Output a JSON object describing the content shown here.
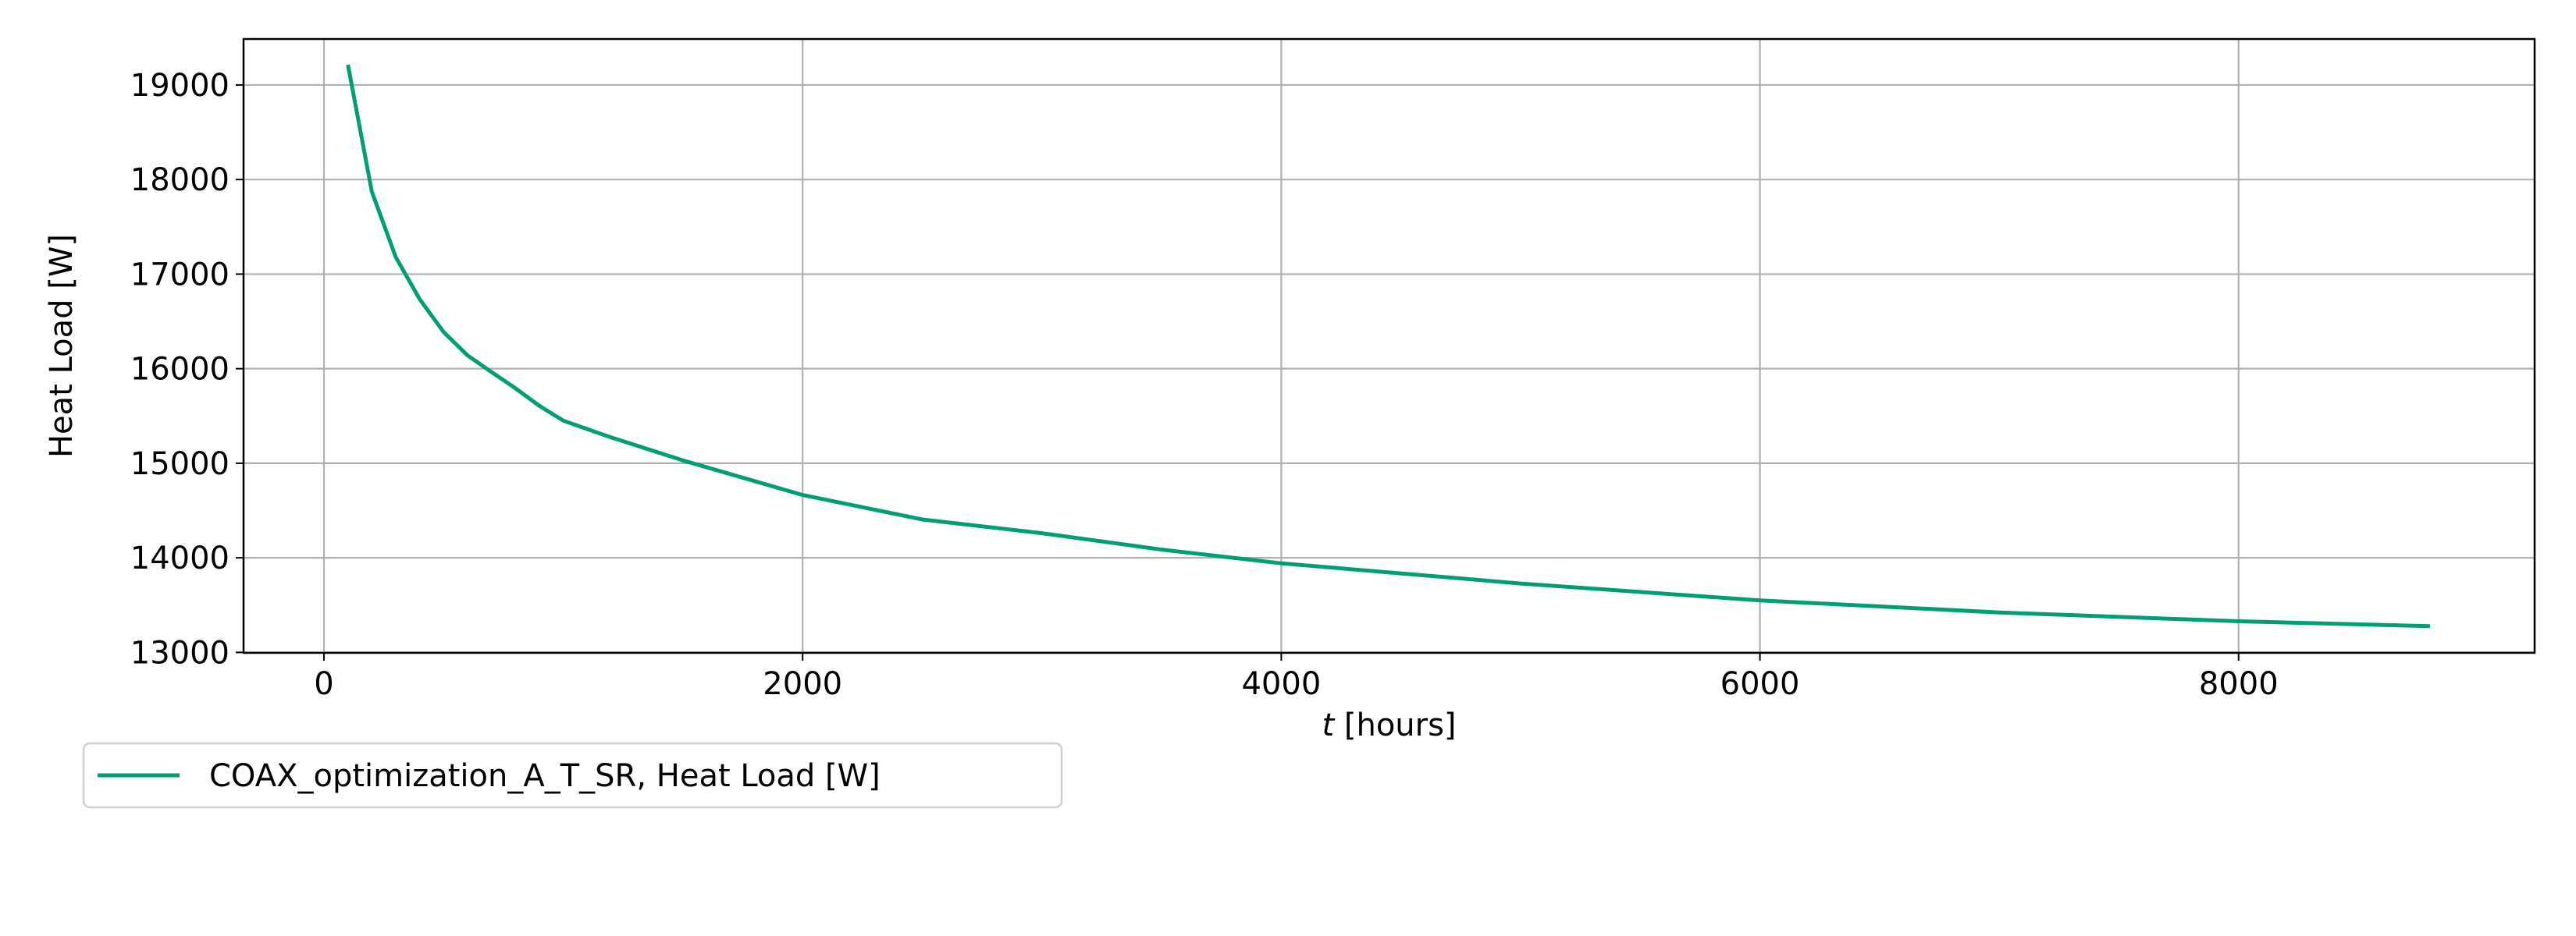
{
  "chart_data": {
    "type": "line",
    "title": "",
    "xlabel_italic": "t",
    "xlabel_rest": " [hours]",
    "ylabel": "Heat Load [W]",
    "xlim": [
      -336,
      9237
    ],
    "ylim": [
      12995,
      19486
    ],
    "xticks": [
      0,
      2000,
      4000,
      6000,
      8000
    ],
    "yticks": [
      13000,
      14000,
      15000,
      16000,
      17000,
      18000,
      19000
    ],
    "grid": true,
    "legend_placement": "below-left",
    "series": [
      {
        "name": "COAX_optimization_A_T_SR, Heat Load [W]",
        "color": "#009e73",
        "x": [
          100,
          200,
          300,
          400,
          500,
          600,
          700,
          800,
          900,
          1000,
          1200,
          1500,
          2000,
          2500,
          3000,
          3500,
          4000,
          5000,
          6000,
          7000,
          8000,
          8800
        ],
        "y": [
          19214,
          17873,
          17179,
          16734,
          16387,
          16140,
          15965,
          15793,
          15607,
          15450,
          15273,
          15030,
          14664,
          14405,
          14260,
          14087,
          13942,
          13728,
          13549,
          13422,
          13329,
          13277
        ]
      }
    ]
  }
}
